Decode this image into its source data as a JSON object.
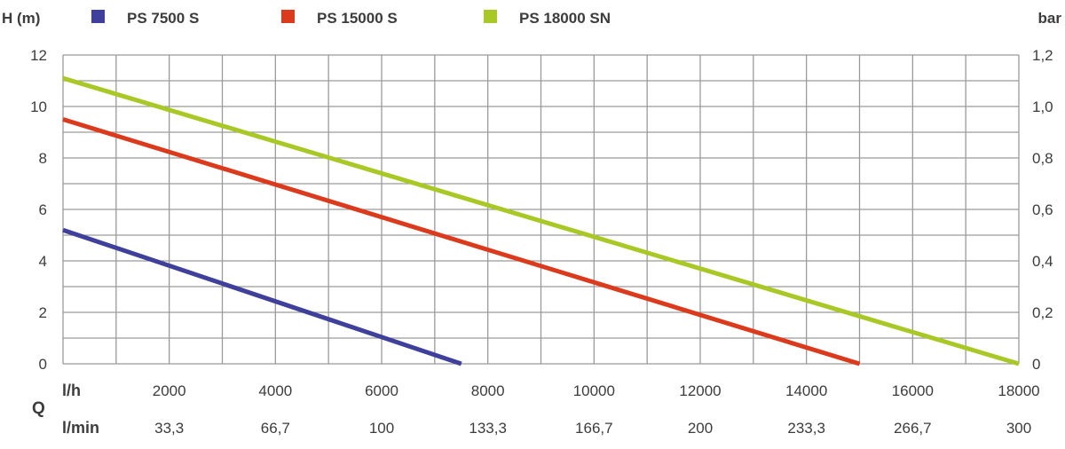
{
  "chart_data": {
    "type": "line",
    "ylabel": "H (m)",
    "ylabel_right": "bar",
    "xlabel": "Q",
    "x_row1_unit": "l/h",
    "x_row2_unit": "l/min",
    "xlim": [
      0,
      18000
    ],
    "ylim": [
      0,
      12
    ],
    "y_ticks": [
      "0",
      "2",
      "4",
      "6",
      "8",
      "10",
      "12"
    ],
    "y_ticks_right": [
      "0",
      "0,2",
      "0,4",
      "0,6",
      "0,8",
      "1,0",
      "1,2"
    ],
    "x_ticks_lh": [
      "2000",
      "4000",
      "6000",
      "8000",
      "10000",
      "12000",
      "14000",
      "16000",
      "18000"
    ],
    "x_ticks_lmin": [
      "33,3",
      "66,7",
      "100",
      "133,3",
      "166,7",
      "200",
      "233,3",
      "266,7",
      "300"
    ],
    "grid": true,
    "legend_position": "top",
    "series": [
      {
        "name": "PS 7500 S",
        "color": "#3f3f9c",
        "x": [
          0,
          7500
        ],
        "y": [
          5.2,
          0
        ]
      },
      {
        "name": "PS 15000 S",
        "color": "#dc3a1c",
        "x": [
          0,
          15000
        ],
        "y": [
          9.5,
          0
        ]
      },
      {
        "name": "PS 18000 SN",
        "color": "#a8c826",
        "x": [
          0,
          18000
        ],
        "y": [
          11.1,
          0
        ]
      }
    ]
  }
}
